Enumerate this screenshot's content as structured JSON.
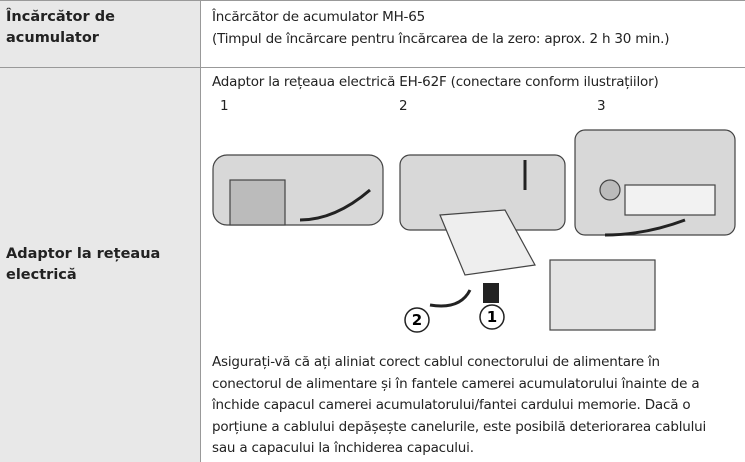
{
  "table": {
    "rows": [
      {
        "label": "Încărcător de acumulator",
        "lines": [
          "Încărcător de acumulator MH-65",
          "(Timpul de încărcare pentru încărcarea de la zero: aprox. 2 h 30 min.)"
        ]
      },
      {
        "label": "Adaptor la rețeaua electrică",
        "intro": "Adaptor la rețeaua electrică EH-62F (conectare conform ilustrațiilor)",
        "steps": [
          "1",
          "2",
          "3"
        ],
        "callouts": [
          "1",
          "2"
        ],
        "note": [
          "Asigurați-vă că ați aliniat corect cablul conectorului de alimentare în",
          "conectorul de alimentare și în fantele camerei acumulatorului înainte de a",
          "închide capacul camerei acumulatorului/fantei cardului memorie. Dacă o",
          "porțiune a cablului depășește canelurile, este posibilă deteriorarea cablului",
          "sau a capacului la închiderea capacului."
        ]
      }
    ]
  }
}
